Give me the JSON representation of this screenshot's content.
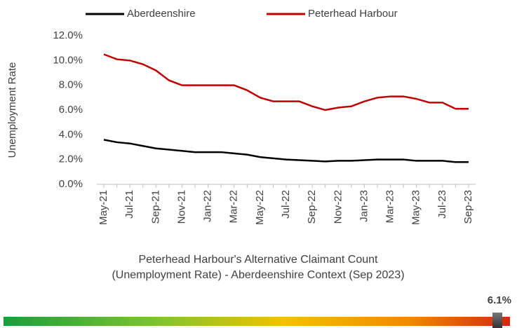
{
  "chart_data": {
    "type": "line",
    "y_label": "Unemployment Rate",
    "title": "Peterhead Harbour's Alternative Claimant Count (Unemployment Rate) - Aberdeenshire Context (Sep 2023)",
    "categories": [
      "May-21",
      null,
      "Jul-21",
      null,
      "Sep-21",
      null,
      "Nov-21",
      null,
      "Jan-22",
      null,
      "Mar-22",
      null,
      "May-22",
      null,
      "Jul-22",
      null,
      "Sep-22",
      null,
      "Nov-22",
      null,
      "Jan-23",
      null,
      "Mar-23",
      null,
      "May-23",
      null,
      "Jul-23",
      null,
      "Sep-23"
    ],
    "series": [
      {
        "name": "Aberdeenshire",
        "color": "#000000",
        "values": [
          3.6,
          3.4,
          3.3,
          3.1,
          2.9,
          2.8,
          2.7,
          2.6,
          2.6,
          2.6,
          2.5,
          2.4,
          2.2,
          2.1,
          2.0,
          1.95,
          1.9,
          1.85,
          1.9,
          1.9,
          1.95,
          2.0,
          2.0,
          2.0,
          1.9,
          1.9,
          1.9,
          1.8,
          1.8
        ]
      },
      {
        "name": "Peterhead Harbour",
        "color": "#c00000",
        "values": [
          10.5,
          10.1,
          10.0,
          9.7,
          9.2,
          8.4,
          8.0,
          8.0,
          8.0,
          8.0,
          8.0,
          7.6,
          7.0,
          6.7,
          6.7,
          6.7,
          6.3,
          6.0,
          6.2,
          6.3,
          6.7,
          7.0,
          7.1,
          7.1,
          6.9,
          6.6,
          6.6,
          6.1,
          6.1
        ]
      }
    ],
    "ylim": [
      0,
      12
    ],
    "yticks": [
      {
        "value": 0,
        "label": "0.0%"
      },
      {
        "value": 2,
        "label": "2.0%"
      },
      {
        "value": 4,
        "label": "4.0%"
      },
      {
        "value": 6,
        "label": "6.0%"
      },
      {
        "value": 8,
        "label": "8.0%"
      },
      {
        "value": 10,
        "label": "10.0%"
      },
      {
        "value": 12,
        "label": "12.0%"
      }
    ],
    "indicator": {
      "value": 6.1,
      "label": "6.1%"
    }
  }
}
